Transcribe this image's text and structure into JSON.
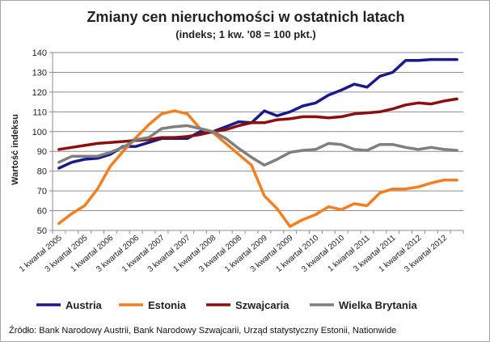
{
  "chart_data": {
    "type": "line",
    "title": "Zmiany cen nieruchomości w ostatnich latach",
    "subtitle": "(indeks; 1 kw. '08 = 100 pkt.)",
    "ylabel": "Wartość indeksu",
    "xlabel": "",
    "ylim": [
      50,
      140
    ],
    "yticks": [
      50,
      60,
      70,
      80,
      90,
      100,
      110,
      120,
      130,
      140
    ],
    "grid": true,
    "legend_position": "bottom",
    "x": [
      "1 kwartał 2005",
      "2 kwartał 2005",
      "3 kwartał 2005",
      "4 kwartał 2005",
      "1 kwartał 2006",
      "2 kwartał 2006",
      "3 kwartał 2006",
      "4 kwartał 2006",
      "1 kwartał 2007",
      "2 kwartał 2007",
      "3 kwartał 2007",
      "4 kwartał 2007",
      "1 kwartał 2008",
      "2 kwartał 2008",
      "3 kwartał 2008",
      "4 kwartał 2008",
      "1 kwartał 2009",
      "2 kwartał 2009",
      "3 kwartał 2009",
      "4 kwartał 2009",
      "1 kwartał 2010",
      "2 kwartał 2010",
      "3 kwartał 2010",
      "4 kwartał 2010",
      "1 kwartał 2011",
      "2 kwartał 2011",
      "3 kwartał 2011",
      "4 kwartał 2011",
      "1 kwartał 2012",
      "2 kwartał 2012",
      "3 kwartał 2012",
      "4 kwartał 2012"
    ],
    "x_tick_labels": [
      "1 kwartał 2005",
      "3 kwartał 2005",
      "1 kwartał 2006",
      "3 kwartał 2006",
      "1 kwartał 2007",
      "3 kwartał 2007",
      "1 kwartał 2008",
      "3 kwartał 2008",
      "1 kwartał 2009",
      "3 kwartał 2009",
      "1 kwartał 2010",
      "3 kwartał 2010",
      "1 kwartał 2011",
      "3 kwartał 2011",
      "1 kwartał 2012",
      "3 kwartał 2012"
    ],
    "series": [
      {
        "name": "Austria",
        "color": "#1a1a8c",
        "values": [
          81.5,
          84.5,
          86,
          86.5,
          88.5,
          92.5,
          92.5,
          94.5,
          96.5,
          96.5,
          96.5,
          100,
          100,
          102.5,
          105,
          104.5,
          110.5,
          108,
          110,
          113,
          114.5,
          118.5,
          121,
          124,
          122.5,
          128,
          130,
          136,
          136,
          136.5,
          136.5,
          136.5
        ]
      },
      {
        "name": "Estonia",
        "color": "#f47f20",
        "values": [
          53.5,
          58.5,
          62.5,
          71,
          82.5,
          90,
          97,
          103.5,
          109,
          110.5,
          109,
          101.5,
          99.5,
          94,
          88.5,
          83,
          67.5,
          61,
          52,
          55.5,
          58,
          62,
          60.5,
          63.5,
          62.5,
          69,
          71,
          71,
          72,
          74,
          75.5,
          75.5
        ]
      },
      {
        "name": "Szwajcaria",
        "color": "#8b0f0f",
        "values": [
          91,
          92,
          93,
          94,
          94.5,
          95,
          95.5,
          96,
          97,
          97,
          97.5,
          98.5,
          100,
          101,
          103,
          104.5,
          104.5,
          106,
          106.5,
          107.5,
          107.5,
          107,
          107.5,
          109,
          109.5,
          110,
          111.5,
          113.5,
          114.5,
          114,
          115.5,
          116.5
        ]
      },
      {
        "name": "Wielka Brytania",
        "color": "#7f7f7f",
        "values": [
          84.5,
          87.5,
          87.5,
          87.5,
          89.5,
          92,
          96,
          97,
          101.5,
          102.5,
          103,
          101.5,
          100,
          96.5,
          91.5,
          87,
          83,
          86,
          89.5,
          90.5,
          91,
          94,
          93.5,
          91,
          90.5,
          93.5,
          93.5,
          92,
          91,
          92,
          91,
          90.5
        ]
      }
    ],
    "source": "Źródło: Bank Narodowy Austrii, Bank Narodowy Szwajcarii, Urząd statystyczny Estonii, Nationwide"
  }
}
